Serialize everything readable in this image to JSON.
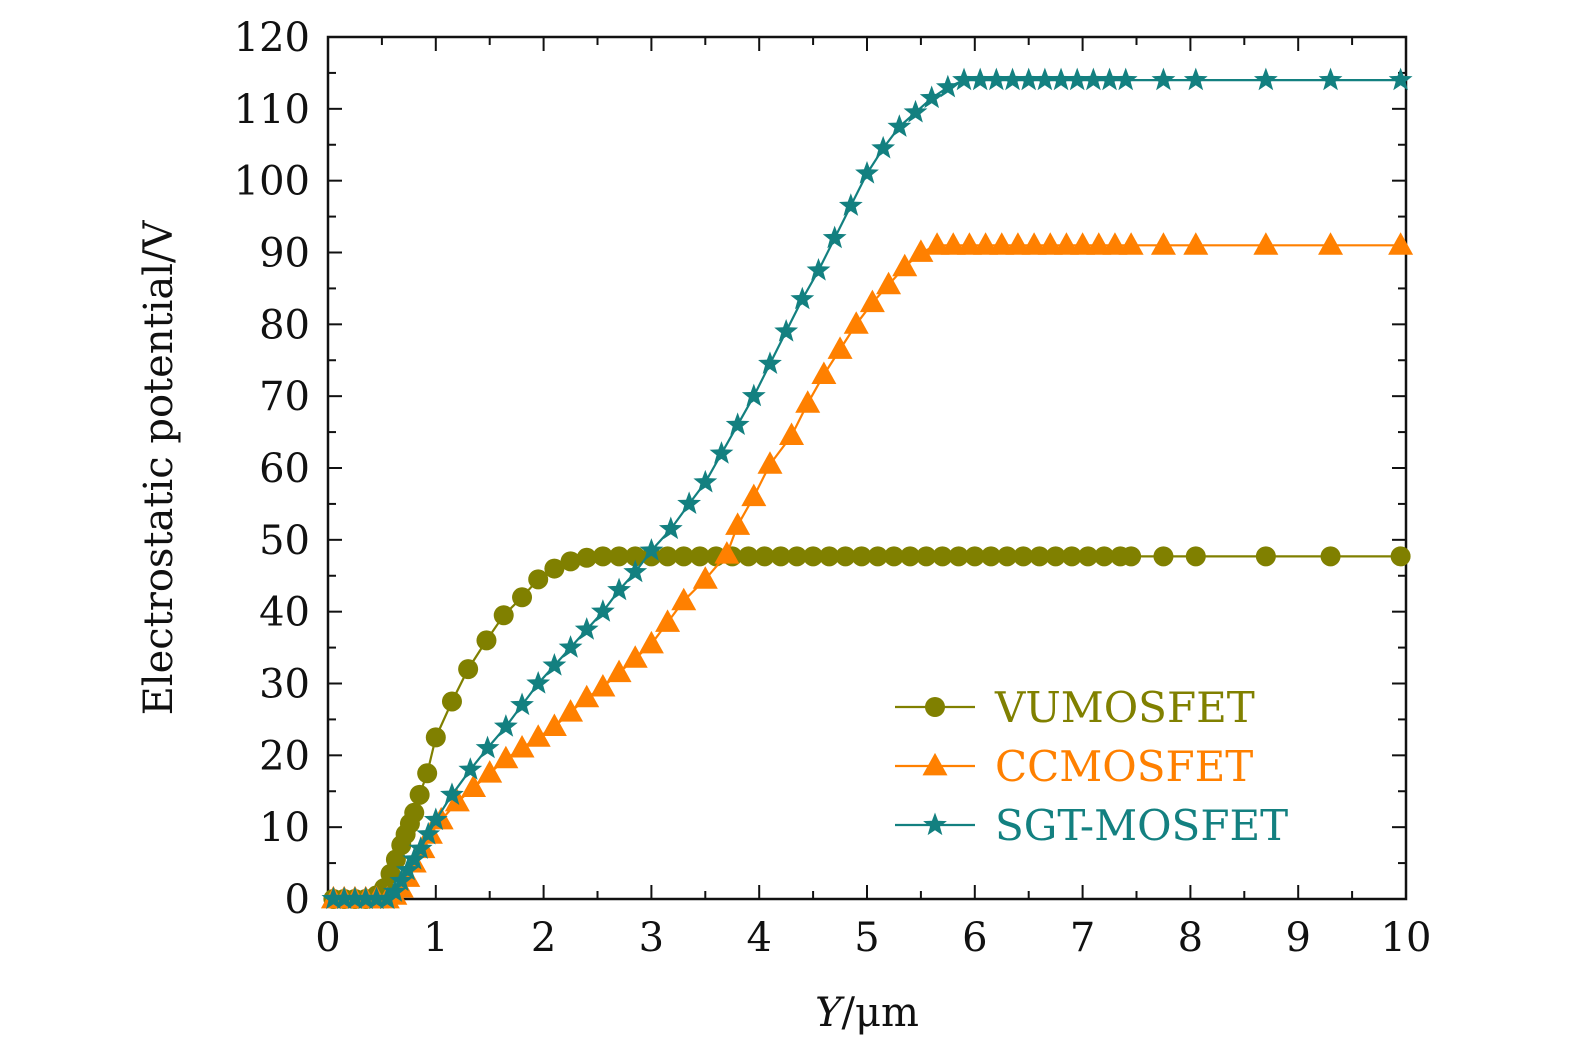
{
  "chart_data": {
    "type": "line",
    "title": "",
    "xlabel": "Y/μm",
    "xlabel_italic": "Y",
    "xlabel_rest": "/μm",
    "ylabel": "Electrostatic potential/V",
    "xlim": [
      0,
      10
    ],
    "ylim": [
      0,
      120
    ],
    "xticks": [
      0,
      1,
      2,
      3,
      4,
      5,
      6,
      7,
      8,
      9,
      10
    ],
    "yticks": [
      0,
      10,
      20,
      30,
      40,
      50,
      60,
      70,
      80,
      90,
      100,
      110,
      120
    ],
    "grid": false,
    "legend_position": "lower-right",
    "series": [
      {
        "name": "VUMOSFET",
        "color": "#808000",
        "marker": "circle",
        "x": [
          0.05,
          0.15,
          0.25,
          0.35,
          0.45,
          0.52,
          0.58,
          0.63,
          0.68,
          0.72,
          0.76,
          0.8,
          0.85,
          0.92,
          1.0,
          1.15,
          1.3,
          1.47,
          1.63,
          1.8,
          1.95,
          2.1,
          2.25,
          2.4,
          2.55,
          2.7,
          2.85,
          3.0,
          3.15,
          3.3,
          3.45,
          3.6,
          3.75,
          3.9,
          4.05,
          4.2,
          4.35,
          4.5,
          4.65,
          4.8,
          4.95,
          5.1,
          5.25,
          5.4,
          5.55,
          5.7,
          5.85,
          6.0,
          6.15,
          6.3,
          6.45,
          6.6,
          6.75,
          6.9,
          7.05,
          7.2,
          7.35,
          7.45,
          7.75,
          8.05,
          8.7,
          9.3,
          9.95
        ],
        "values": [
          0,
          0,
          0,
          0,
          0.5,
          1.5,
          3.5,
          5.5,
          7.5,
          9,
          10.5,
          12,
          14.5,
          17.5,
          22.5,
          27.5,
          32,
          36,
          39.5,
          42,
          44.5,
          46,
          47,
          47.5,
          47.7,
          47.7,
          47.7,
          47.7,
          47.7,
          47.7,
          47.7,
          47.7,
          47.7,
          47.7,
          47.7,
          47.7,
          47.7,
          47.7,
          47.7,
          47.7,
          47.7,
          47.7,
          47.7,
          47.7,
          47.7,
          47.7,
          47.7,
          47.7,
          47.7,
          47.7,
          47.7,
          47.7,
          47.7,
          47.7,
          47.7,
          47.7,
          47.7,
          47.7,
          47.7,
          47.7,
          47.7,
          47.7,
          47.7
        ]
      },
      {
        "name": "CCMOSFET",
        "color": "#ff8000",
        "marker": "triangle",
        "x": [
          0.05,
          0.15,
          0.25,
          0.35,
          0.45,
          0.55,
          0.62,
          0.68,
          0.74,
          0.8,
          0.88,
          0.95,
          1.05,
          1.2,
          1.35,
          1.5,
          1.65,
          1.8,
          1.95,
          2.1,
          2.25,
          2.4,
          2.55,
          2.7,
          2.85,
          3.0,
          3.15,
          3.3,
          3.5,
          3.7,
          3.8,
          3.95,
          4.1,
          4.3,
          4.45,
          4.6,
          4.75,
          4.9,
          5.05,
          5.2,
          5.35,
          5.5,
          5.65,
          5.8,
          5.95,
          6.1,
          6.25,
          6.4,
          6.55,
          6.7,
          6.85,
          7.0,
          7.15,
          7.3,
          7.45,
          7.75,
          8.05,
          8.7,
          9.3,
          9.95
        ],
        "values": [
          0,
          0,
          0,
          0,
          0,
          0,
          0.5,
          1.5,
          3,
          5,
          7,
          9,
          11,
          13.5,
          15.5,
          17.5,
          19.5,
          21,
          22.5,
          24,
          26,
          28,
          29.5,
          31.5,
          33.5,
          35.5,
          38.5,
          41.5,
          44.5,
          48,
          52,
          56,
          60.5,
          64.5,
          69,
          73,
          76.5,
          80,
          83,
          85.5,
          88,
          90,
          91,
          91,
          91,
          91,
          91,
          91,
          91,
          91,
          91,
          91,
          91,
          91,
          91,
          91,
          91,
          91,
          91,
          91
        ]
      },
      {
        "name": "SGT-MOSFET",
        "color": "#138080",
        "marker": "star",
        "x": [
          0.05,
          0.15,
          0.25,
          0.35,
          0.45,
          0.55,
          0.62,
          0.68,
          0.74,
          0.8,
          0.86,
          0.93,
          1.0,
          1.15,
          1.32,
          1.48,
          1.65,
          1.8,
          1.95,
          2.1,
          2.25,
          2.4,
          2.55,
          2.7,
          2.85,
          3.0,
          3.18,
          3.35,
          3.5,
          3.65,
          3.8,
          3.95,
          4.1,
          4.25,
          4.4,
          4.55,
          4.7,
          4.85,
          5.0,
          5.15,
          5.3,
          5.45,
          5.6,
          5.75,
          5.9,
          6.05,
          6.2,
          6.35,
          6.5,
          6.65,
          6.8,
          6.95,
          7.1,
          7.25,
          7.4,
          7.75,
          8.05,
          8.7,
          9.3,
          9.95
        ],
        "values": [
          0,
          0,
          0,
          0,
          0,
          0,
          1,
          2.5,
          4,
          5.5,
          7,
          9,
          11,
          14.5,
          18,
          21,
          24,
          27,
          30,
          32.5,
          35,
          37.5,
          40,
          43,
          45.5,
          48.5,
          51.5,
          55,
          58,
          62,
          66,
          70,
          74.5,
          79,
          83.5,
          87.5,
          92,
          96.5,
          101,
          104.5,
          107.5,
          109.5,
          111.5,
          113,
          114,
          114,
          114,
          114,
          114,
          114,
          114,
          114,
          114,
          114,
          114,
          114,
          114,
          114,
          114,
          114
        ]
      }
    ]
  }
}
